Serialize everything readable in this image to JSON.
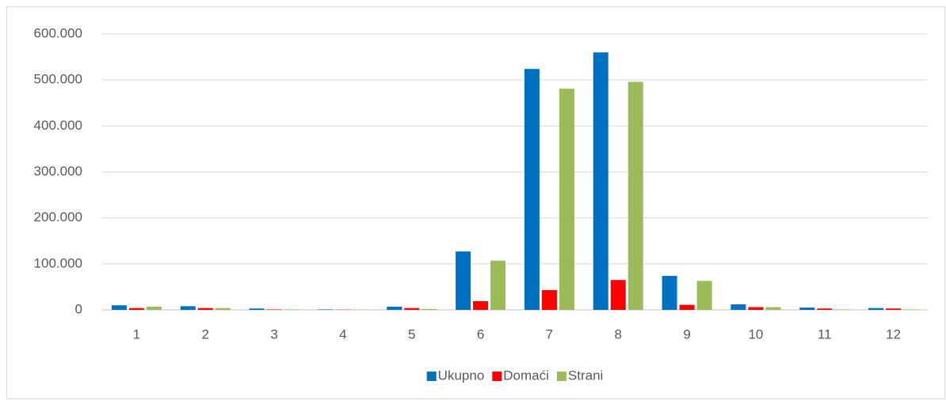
{
  "chart_data": {
    "type": "bar",
    "categories": [
      "1",
      "2",
      "3",
      "4",
      "5",
      "6",
      "7",
      "8",
      "9",
      "10",
      "11",
      "12"
    ],
    "series": [
      {
        "name": "Ukupno",
        "color": "#0070c0",
        "values": [
          10000,
          8000,
          3000,
          1000,
          7000,
          127000,
          524000,
          560000,
          74000,
          12000,
          5000,
          4000
        ]
      },
      {
        "name": "Domaći",
        "color": "#ff0000",
        "values": [
          4000,
          4000,
          1000,
          500,
          4000,
          19000,
          43000,
          65000,
          11000,
          6000,
          3000,
          3000
        ]
      },
      {
        "name": "Strani",
        "color": "#9bbb59",
        "values": [
          7000,
          4000,
          1000,
          500,
          2000,
          107000,
          481000,
          496000,
          63000,
          6000,
          1000,
          1000
        ]
      }
    ],
    "ylim": [
      0,
      600000
    ],
    "yticks": [
      0,
      {
        "value": 100000,
        "label": "100.000"
      },
      {
        "value": 200000,
        "label": "200.000"
      },
      {
        "value": 300000,
        "label": "300.000"
      },
      {
        "value": 400000,
        "label": "400.000"
      },
      {
        "value": 500000,
        "label": "500.000"
      },
      {
        "value": 600000,
        "label": "600.000"
      }
    ],
    "grid": true,
    "legend": "bottom"
  }
}
